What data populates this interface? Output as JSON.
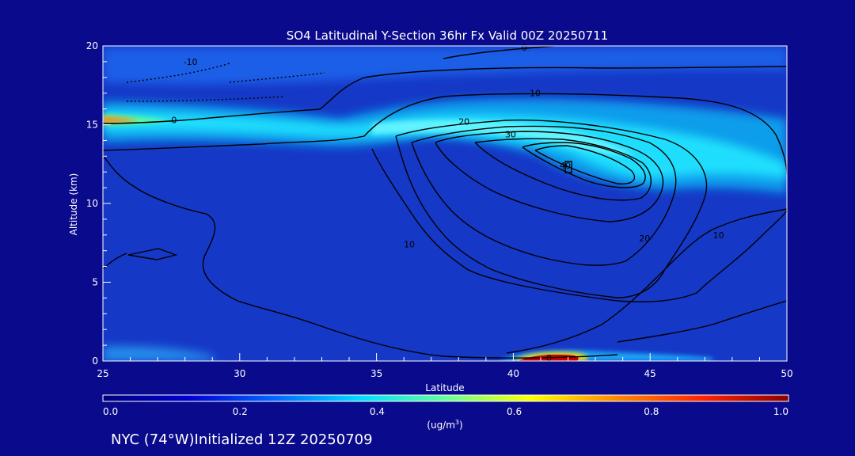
{
  "chart_data": {
    "type": "heatmap",
    "title": "SO4 Latitudinal Y-Section 36hr  Fx Valid 00Z 20250711",
    "xlabel": "Latitude",
    "ylabel": "Altitude (km)",
    "xlim": [
      25,
      50
    ],
    "ylim": [
      0,
      20
    ],
    "x_ticks": [
      25,
      30,
      35,
      40,
      45,
      50
    ],
    "y_ticks": [
      0,
      5,
      10,
      15,
      20
    ],
    "colorbar": {
      "range": [
        0.0,
        1.0
      ],
      "ticks": [
        "0.0",
        "0.2",
        "0.4",
        "0.6",
        "0.8",
        "1.0"
      ],
      "units_label": "(ug/m",
      "units_sup": "3",
      "units_close": ")",
      "stops": [
        "#00007f",
        "#0000d0",
        "#0066ff",
        "#00ddff",
        "#66ff99",
        "#ffff00",
        "#ff8800",
        "#ff2200",
        "#8b0000"
      ]
    },
    "background_color": "#0a0a8c",
    "field_color": "#1638c6",
    "concentration_features": [
      {
        "name": "tropopause band",
        "lat": [
          25,
          50
        ],
        "alt": [
          13,
          17.5
        ],
        "peak": 0.55
      },
      {
        "name": "surface plume",
        "lat": [
          40.2,
          42.3
        ],
        "alt": [
          0,
          0.7
        ],
        "peak": 1.0
      }
    ],
    "contour_labels": [
      {
        "text": "-10",
        "lat": 28.2,
        "alt": 19.0
      },
      {
        "text": "0",
        "lat": 27.6,
        "alt": 15.3
      },
      {
        "text": "0",
        "lat": 40.4,
        "alt": 19.9
      },
      {
        "text": "10",
        "lat": 40.8,
        "alt": 17.0
      },
      {
        "text": "20",
        "lat": 38.2,
        "alt": 15.2
      },
      {
        "text": "30",
        "lat": 39.9,
        "alt": 14.4
      },
      {
        "text": "40",
        "lat": 41.9,
        "alt": 12.4
      },
      {
        "text": "10",
        "lat": 36.2,
        "alt": 7.4
      },
      {
        "text": "20",
        "lat": 44.8,
        "alt": 7.8
      },
      {
        "text": "10",
        "lat": 47.5,
        "alt": 8.0
      },
      {
        "text": "0",
        "lat": 41.3,
        "alt": 0.2
      }
    ]
  },
  "footer": {
    "station_info": "NYC (74°W)Initialized 12Z 20250709"
  }
}
